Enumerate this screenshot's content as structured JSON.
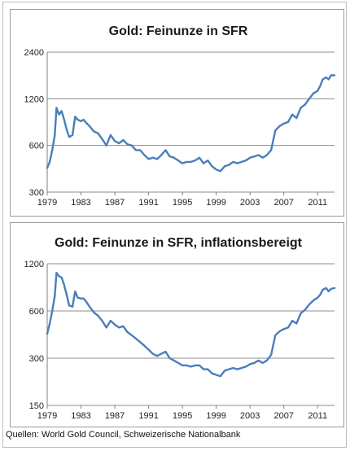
{
  "source": "Quellen: World Gold Council, Schweizerische Nationalbank",
  "colors": {
    "line": "#4a7ebb",
    "grid": "#8c8c8c",
    "axis": "#7f7f7f"
  },
  "chart_data": [
    {
      "type": "line",
      "title": "Gold: Feinunze in SFR",
      "xlabel": "",
      "ylabel": "",
      "y_scale": "log",
      "ylim": [
        300,
        2400
      ],
      "yticks": [
        300,
        600,
        1200,
        2400
      ],
      "xlim": [
        1979.0,
        2013.0
      ],
      "xticks": [
        1979,
        1983,
        1987,
        1991,
        1995,
        1999,
        2003,
        2007,
        2011
      ],
      "grid": true,
      "series": [
        {
          "x": [
            1979.0,
            1979.3,
            1979.6,
            1979.9,
            1980.1,
            1980.4,
            1980.7,
            1981.0,
            1981.3,
            1981.6,
            1982.0,
            1982.3,
            1982.6,
            1983.0,
            1983.3,
            1983.6,
            1984.0,
            1984.5,
            1985.0,
            1985.5,
            1986.0,
            1986.5,
            1987.0,
            1987.5,
            1988.0,
            1988.5,
            1989.0,
            1989.5,
            1990.0,
            1990.5,
            1991.0,
            1991.5,
            1992.0,
            1992.5,
            1993.0,
            1993.5,
            1994.0,
            1994.5,
            1995.0,
            1995.5,
            1996.0,
            1996.5,
            1997.0,
            1997.5,
            1998.0,
            1998.5,
            1999.0,
            1999.5,
            2000.0,
            2000.5,
            2001.0,
            2001.5,
            2002.0,
            2002.5,
            2003.0,
            2003.5,
            2004.0,
            2004.5,
            2005.0,
            2005.5,
            2006.0,
            2006.5,
            2007.0,
            2007.5,
            2008.0,
            2008.5,
            2009.0,
            2009.5,
            2010.0,
            2010.5,
            2011.0,
            2011.3,
            2011.6,
            2012.0,
            2012.3,
            2012.6,
            2013.0
          ],
          "values": [
            430,
            470,
            560,
            700,
            1050,
            950,
            1000,
            880,
            760,
            680,
            700,
            920,
            880,
            860,
            880,
            840,
            800,
            740,
            720,
            660,
            600,
            700,
            640,
            620,
            650,
            610,
            600,
            560,
            560,
            520,
            490,
            500,
            490,
            520,
            560,
            510,
            500,
            480,
            460,
            470,
            470,
            480,
            500,
            460,
            480,
            440,
            420,
            410,
            440,
            450,
            470,
            460,
            470,
            480,
            500,
            510,
            520,
            500,
            520,
            560,
            750,
            800,
            830,
            850,
            950,
            900,
            1050,
            1100,
            1200,
            1300,
            1350,
            1450,
            1600,
            1650,
            1600,
            1700,
            1700
          ]
        }
      ]
    },
    {
      "type": "line",
      "title": "Gold: Feinunze in SFR, inflationsbereigt",
      "xlabel": "",
      "ylabel": "",
      "y_scale": "log",
      "ylim": [
        150,
        1200
      ],
      "yticks": [
        150,
        300,
        600,
        1200
      ],
      "xlim": [
        1979.0,
        2013.0
      ],
      "xticks": [
        1979,
        1983,
        1987,
        1991,
        1995,
        1999,
        2003,
        2007,
        2011
      ],
      "grid": true,
      "series": [
        {
          "x": [
            1979.0,
            1979.3,
            1979.6,
            1979.9,
            1980.1,
            1980.4,
            1980.7,
            1981.0,
            1981.3,
            1981.6,
            1982.0,
            1982.3,
            1982.6,
            1983.0,
            1983.3,
            1983.6,
            1984.0,
            1984.5,
            1985.0,
            1985.5,
            1986.0,
            1986.5,
            1987.0,
            1987.5,
            1988.0,
            1988.5,
            1989.0,
            1989.5,
            1990.0,
            1990.5,
            1991.0,
            1991.5,
            1992.0,
            1992.5,
            1993.0,
            1993.5,
            1994.0,
            1994.5,
            1995.0,
            1995.5,
            1996.0,
            1996.5,
            1997.0,
            1997.5,
            1998.0,
            1998.5,
            1999.0,
            1999.5,
            2000.0,
            2000.5,
            2001.0,
            2001.5,
            2002.0,
            2002.5,
            2003.0,
            2003.5,
            2004.0,
            2004.5,
            2005.0,
            2005.5,
            2006.0,
            2006.5,
            2007.0,
            2007.5,
            2008.0,
            2008.5,
            2009.0,
            2009.5,
            2010.0,
            2010.5,
            2011.0,
            2011.3,
            2011.6,
            2012.0,
            2012.3,
            2012.6,
            2013.0
          ],
          "values": [
            430,
            500,
            600,
            750,
            1050,
            1000,
            980,
            880,
            760,
            650,
            640,
            800,
            730,
            720,
            720,
            690,
            640,
            590,
            560,
            520,
            470,
            520,
            490,
            470,
            480,
            440,
            420,
            400,
            380,
            360,
            340,
            320,
            310,
            320,
            330,
            300,
            290,
            280,
            270,
            270,
            265,
            270,
            270,
            255,
            255,
            240,
            235,
            230,
            250,
            255,
            260,
            255,
            260,
            265,
            275,
            280,
            290,
            280,
            290,
            315,
            420,
            445,
            460,
            470,
            520,
            500,
            580,
            610,
            660,
            700,
            730,
            760,
            820,
            840,
            800,
            830,
            840
          ]
        }
      ]
    }
  ]
}
